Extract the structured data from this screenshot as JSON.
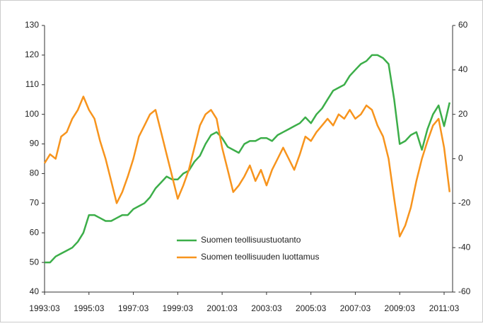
{
  "chart_data": {
    "type": "line",
    "x": [
      "1993:03",
      "1993:06",
      "1993:09",
      "1993:12",
      "1994:03",
      "1994:06",
      "1994:09",
      "1994:12",
      "1995:03",
      "1995:06",
      "1995:09",
      "1995:12",
      "1996:03",
      "1996:06",
      "1996:09",
      "1996:12",
      "1997:03",
      "1997:06",
      "1997:09",
      "1997:12",
      "1998:03",
      "1998:06",
      "1998:09",
      "1998:12",
      "1999:03",
      "1999:06",
      "1999:09",
      "1999:12",
      "2000:03",
      "2000:06",
      "2000:09",
      "2000:12",
      "2001:03",
      "2001:06",
      "2001:09",
      "2001:12",
      "2002:03",
      "2002:06",
      "2002:09",
      "2002:12",
      "2003:03",
      "2003:06",
      "2003:09",
      "2003:12",
      "2004:03",
      "2004:06",
      "2004:09",
      "2004:12",
      "2005:03",
      "2005:06",
      "2005:09",
      "2005:12",
      "2006:03",
      "2006:06",
      "2006:09",
      "2006:12",
      "2007:03",
      "2007:06",
      "2007:09",
      "2007:12",
      "2008:03",
      "2008:06",
      "2008:09",
      "2008:12",
      "2009:03",
      "2009:06",
      "2009:09",
      "2009:12",
      "2010:03",
      "2010:06",
      "2010:09",
      "2010:12",
      "2011:03",
      "2011:06"
    ],
    "series": [
      {
        "name": "Suomen teollisuustuotanto",
        "color": "#3cae49",
        "axis": "y",
        "values": [
          50,
          50,
          52,
          53,
          54,
          55,
          57,
          60,
          66,
          66,
          65,
          64,
          64,
          65,
          66,
          66,
          68,
          69,
          70,
          72,
          75,
          77,
          79,
          78,
          78,
          80,
          81,
          84,
          86,
          90,
          93,
          94,
          92,
          89,
          88,
          87,
          90,
          91,
          91,
          92,
          92,
          91,
          93,
          94,
          95,
          96,
          97,
          99,
          97,
          100,
          102,
          105,
          108,
          109,
          110,
          113,
          115,
          117,
          118,
          120,
          120,
          119,
          117,
          105,
          90,
          91,
          93,
          94,
          88,
          95,
          100,
          103,
          96,
          104
        ]
      },
      {
        "name": "Suomen teollisuuden luottamus",
        "color": "#f7941d",
        "axis": "y2",
        "values": [
          -2,
          2,
          0,
          10,
          12,
          18,
          22,
          28,
          22,
          18,
          8,
          0,
          -10,
          -20,
          -15,
          -8,
          0,
          10,
          15,
          20,
          22,
          12,
          2,
          -8,
          -18,
          -12,
          -5,
          5,
          15,
          20,
          22,
          18,
          5,
          -5,
          -15,
          -12,
          -8,
          -3,
          -10,
          -5,
          -12,
          -5,
          0,
          5,
          0,
          -5,
          2,
          10,
          8,
          12,
          15,
          18,
          15,
          20,
          18,
          22,
          18,
          20,
          24,
          22,
          15,
          10,
          0,
          -18,
          -35,
          -30,
          -22,
          -10,
          0,
          8,
          15,
          18,
          5,
          -15
        ]
      }
    ],
    "xticks": [
      "1993:03",
      "1995:03",
      "1997:03",
      "1999:03",
      "2001:03",
      "2003:03",
      "2005:03",
      "2007:03",
      "2009:03",
      "2011:03"
    ],
    "ylim": [
      40,
      130
    ],
    "yticks": [
      40,
      50,
      60,
      70,
      80,
      90,
      100,
      110,
      120,
      130
    ],
    "y2lim": [
      -60,
      60
    ],
    "y2ticks": [
      -60,
      -40,
      -20,
      0,
      20,
      40,
      60
    ]
  }
}
